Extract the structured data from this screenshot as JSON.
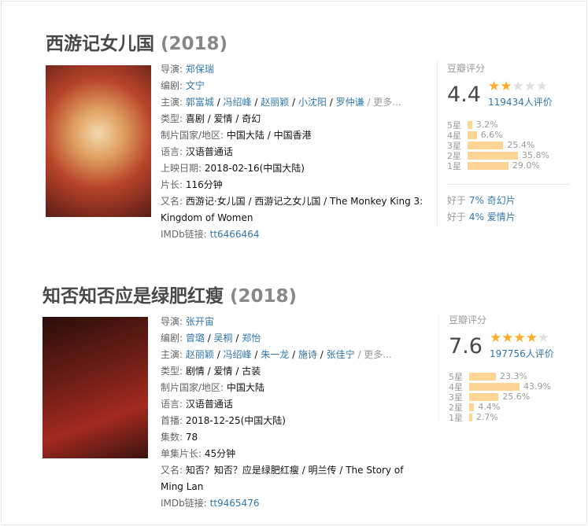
{
  "movies": [
    {
      "title": "西游记女儿国",
      "year": "(2018)",
      "rows": [
        {
          "label": "导演: ",
          "links": [
            "郑保瑞"
          ]
        },
        {
          "label": "编剧: ",
          "links": [
            "文宁"
          ]
        },
        {
          "label": "主演: ",
          "links": [
            "郭富城",
            "冯绍峰",
            "赵丽颖",
            "小沈阳",
            "罗仲谦"
          ],
          "more": "更多..."
        },
        {
          "label": "类型: ",
          "text": "喜剧 / 爱情 / 奇幻"
        },
        {
          "label": "制片国家/地区: ",
          "text": "中国大陆 / 中国香港"
        },
        {
          "label": "语言: ",
          "text": "汉语普通话"
        },
        {
          "label": "上映日期: ",
          "text": "2018-02-16(中国大陆)"
        },
        {
          "label": "片长: ",
          "text": "116分钟"
        },
        {
          "label": "又名: ",
          "text": "西游记·女儿国 / 西游记之女儿国 / The Monkey King 3: Kingdom of Women"
        },
        {
          "label": "IMDb链接: ",
          "links": [
            "tt6466464"
          ]
        }
      ],
      "rating": {
        "heading": "豆瓣评分",
        "score": "4.4",
        "stars_filled": 2,
        "votes": "119434人评价",
        "dist": [
          {
            "label": "5星",
            "pct": "3.2%",
            "value": 3.2
          },
          {
            "label": "4星",
            "pct": "6.6%",
            "value": 6.6
          },
          {
            "label": "3星",
            "pct": "25.4%",
            "value": 25.4
          },
          {
            "label": "2星",
            "pct": "35.8%",
            "value": 35.8
          },
          {
            "label": "1星",
            "pct": "29.0%",
            "value": 29.0
          }
        ],
        "better": [
          {
            "prefix": "好于 ",
            "pct": "7%",
            "genre": "奇幻片"
          },
          {
            "prefix": "好于 ",
            "pct": "4%",
            "genre": "爱情片"
          }
        ]
      }
    },
    {
      "title": "知否知否应是绿肥红瘦",
      "year": "(2018)",
      "rows": [
        {
          "label": "导演: ",
          "links": [
            "张开宙"
          ]
        },
        {
          "label": "编剧: ",
          "links": [
            "曾璐",
            "吴桐",
            "郑怡"
          ]
        },
        {
          "label": "主演: ",
          "links": [
            "赵丽颖",
            "冯绍峰",
            "朱一龙",
            "施诗",
            "张佳宁"
          ],
          "more": "更多..."
        },
        {
          "label": "类型: ",
          "text": "剧情 / 爱情 / 古装"
        },
        {
          "label": "制片国家/地区: ",
          "text": "中国大陆"
        },
        {
          "label": "语言: ",
          "text": "汉语普通话"
        },
        {
          "label": "首播: ",
          "text": "2018-12-25(中国大陆)"
        },
        {
          "label": "集数: ",
          "text": "78"
        },
        {
          "label": "单集片长: ",
          "text": "45分钟"
        },
        {
          "label": "又名: ",
          "text": "知否？知否？应是绿肥红瘦 / 明兰传 / The Story of Ming Lan"
        },
        {
          "label": "IMDb链接: ",
          "links": [
            "tt9465476"
          ]
        }
      ],
      "rating": {
        "heading": "豆瓣评分",
        "score": "7.6",
        "stars_filled": 4,
        "votes": "197756人评价",
        "dist": [
          {
            "label": "5星",
            "pct": "23.3%",
            "value": 23.3
          },
          {
            "label": "4星",
            "pct": "43.9%",
            "value": 43.9
          },
          {
            "label": "3星",
            "pct": "25.6%",
            "value": 25.6
          },
          {
            "label": "2星",
            "pct": "4.4%",
            "value": 4.4
          },
          {
            "label": "1星",
            "pct": "2.7%",
            "value": 2.7
          }
        ],
        "better": []
      }
    }
  ],
  "colors": {
    "link": "#3377aa",
    "star": "#ffac2d",
    "bar": "#ffd596"
  }
}
